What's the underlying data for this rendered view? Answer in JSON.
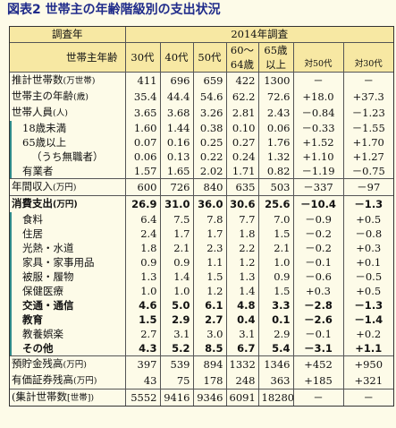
{
  "title": "図表2 世帯主の年齢階級別の支出状況",
  "header": {
    "survey_label": "調査年",
    "survey_year": "2014年調査",
    "age_label": "世帯主年齢",
    "cols": [
      "30代",
      "40代",
      "50代",
      "60～64歳",
      "65歳以上"
    ],
    "col4_line1": "60～",
    "col4_line2": "64歳",
    "col5_line1": "65歳",
    "col5_line2": "以上",
    "diff50": "対50代",
    "diff30": "対30代"
  },
  "rows": [
    {
      "label": "推計世帯数",
      "unit": "(万世帯)",
      "values": [
        "411",
        "696",
        "659",
        "422",
        "1300",
        "－",
        "－"
      ]
    },
    {
      "label": "世帯主の年齢",
      "unit": "(歳)",
      "values": [
        "35.4",
        "44.4",
        "54.6",
        "62.2",
        "72.6",
        "+18.0",
        "+37.3"
      ]
    },
    {
      "label": "世帯人員",
      "unit": "(人)",
      "values": [
        "3.65",
        "3.68",
        "3.26",
        "2.81",
        "2.43",
        "－0.84",
        "－1.23"
      ]
    },
    {
      "label": "18歳未満",
      "unit": "",
      "values": [
        "1.60",
        "1.44",
        "0.38",
        "0.10",
        "0.06",
        "－0.33",
        "－1.55"
      ]
    },
    {
      "label": "65歳以上",
      "unit": "",
      "values": [
        "0.07",
        "0.16",
        "0.25",
        "0.27",
        "1.76",
        "+1.52",
        "+1.70"
      ]
    },
    {
      "label": "（うち無職者）",
      "unit": "",
      "values": [
        "0.06",
        "0.13",
        "0.22",
        "0.24",
        "1.32",
        "+1.10",
        "+1.27"
      ]
    },
    {
      "label": "有業者",
      "unit": "",
      "values": [
        "1.57",
        "1.65",
        "2.02",
        "1.71",
        "0.82",
        "－1.19",
        "－0.75"
      ]
    },
    {
      "label": "年間収入",
      "unit": "(万円)",
      "values": [
        "600",
        "726",
        "840",
        "635",
        "503",
        "－337",
        "－97"
      ]
    },
    {
      "label": "消費支出",
      "unit": "(万円)",
      "values": [
        "26.9",
        "31.0",
        "36.0",
        "30.6",
        "25.6",
        "－10.4",
        "－1.3"
      ]
    },
    {
      "label": "食料",
      "unit": "",
      "values": [
        "6.4",
        "7.5",
        "7.8",
        "7.7",
        "7.0",
        "－0.9",
        "+0.5"
      ]
    },
    {
      "label": "住居",
      "unit": "",
      "values": [
        "2.4",
        "1.7",
        "1.7",
        "1.8",
        "1.5",
        "－0.2",
        "－0.8"
      ]
    },
    {
      "label": "光熱・水道",
      "unit": "",
      "values": [
        "1.8",
        "2.1",
        "2.3",
        "2.2",
        "2.1",
        "－0.2",
        "+0.3"
      ]
    },
    {
      "label": "家具・家事用品",
      "unit": "",
      "values": [
        "0.9",
        "0.9",
        "1.1",
        "1.2",
        "1.0",
        "－0.1",
        "+0.1"
      ]
    },
    {
      "label": "被服・履物",
      "unit": "",
      "values": [
        "1.3",
        "1.4",
        "1.5",
        "1.3",
        "0.9",
        "－0.6",
        "－0.5"
      ]
    },
    {
      "label": "保健医療",
      "unit": "",
      "values": [
        "1.0",
        "1.0",
        "1.2",
        "1.4",
        "1.5",
        "+0.3",
        "+0.5"
      ]
    },
    {
      "label": "交通・通信",
      "unit": "",
      "values": [
        "4.6",
        "5.0",
        "6.1",
        "4.8",
        "3.3",
        "－2.8",
        "－1.3"
      ]
    },
    {
      "label": "教育",
      "unit": "",
      "values": [
        "1.5",
        "2.9",
        "2.7",
        "0.4",
        "0.1",
        "－2.6",
        "－1.4"
      ]
    },
    {
      "label": "教養娯楽",
      "unit": "",
      "values": [
        "2.7",
        "3.1",
        "3.0",
        "3.1",
        "2.9",
        "－0.1",
        "+0.2"
      ]
    },
    {
      "label": "その他",
      "unit": "",
      "values": [
        "4.3",
        "5.2",
        "8.5",
        "6.7",
        "5.4",
        "－3.1",
        "+1.1"
      ]
    },
    {
      "label": "預貯金残高",
      "unit": "(万円)",
      "values": [
        "397",
        "539",
        "894",
        "1332",
        "1346",
        "+452",
        "+950"
      ]
    },
    {
      "label": "有価証券残高",
      "unit": "(万円)",
      "values": [
        "43",
        "75",
        "178",
        "248",
        "363",
        "+185",
        "+321"
      ]
    },
    {
      "label": "(集計世帯数",
      "unit": "[世帯])",
      "values": [
        "5552",
        "9416",
        "9346",
        "6091",
        "18280",
        "－",
        "－"
      ]
    }
  ]
}
